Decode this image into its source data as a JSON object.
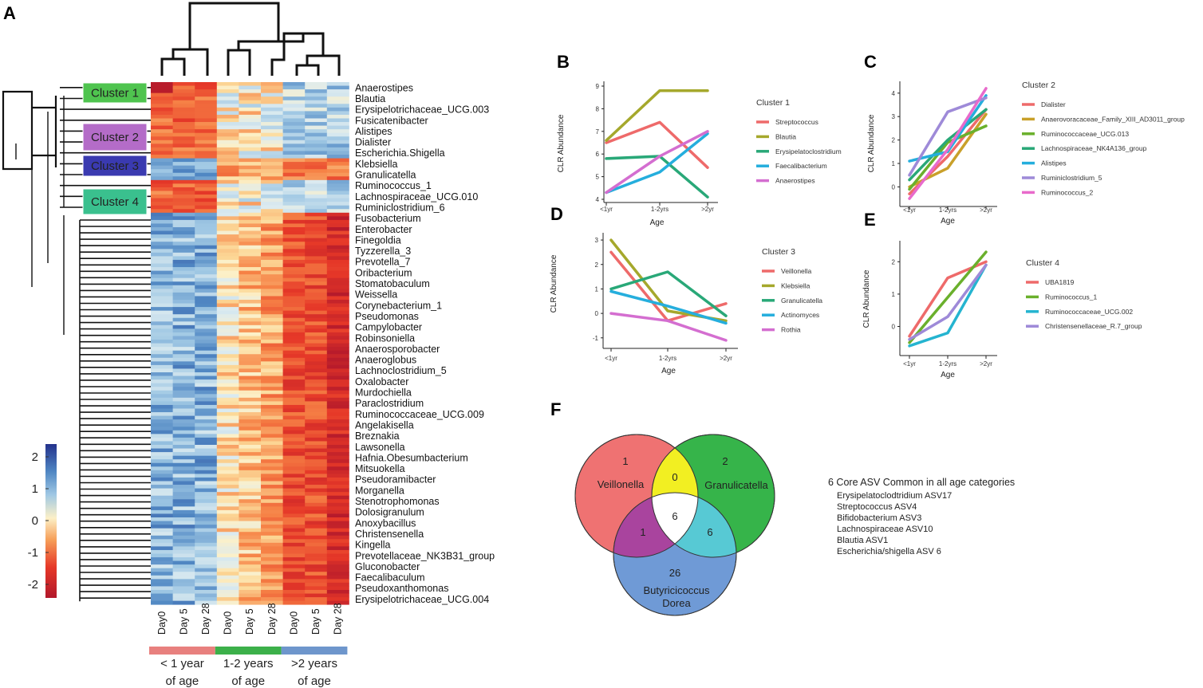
{
  "panel_labels": {
    "a": "A",
    "b": "B",
    "c": "C",
    "d": "D",
    "e": "E",
    "f": "F"
  },
  "heatmap": {
    "columns": [
      "Day0",
      "Day 5",
      "Day 28",
      "Day0",
      "Day 5",
      "Day 28",
      "Day0",
      "Day 5",
      "Day 28"
    ],
    "age_groups": [
      {
        "line1": "< 1 year",
        "line2": "of age",
        "color": "#e8807e"
      },
      {
        "line1": "1-2 years",
        "line2": "of age",
        "color": "#3cb04a"
      },
      {
        "line1": ">2 years",
        "line2": "of age",
        "color": "#6e96cc"
      }
    ],
    "clusters": [
      {
        "label": "Cluster 1",
        "color": "#4fc44f"
      },
      {
        "label": "Cluster 2",
        "color": "#b46cc8"
      },
      {
        "label": "Cluster 3",
        "color": "#3a3ab0"
      },
      {
        "label": "Cluster 4",
        "color": "#3ac08e"
      }
    ],
    "scale_ticks": [
      "2",
      "1",
      "0",
      "-1",
      "-2"
    ],
    "taxa": [
      "Anaerostipes",
      "Blautia",
      "Erysipelotrichaceae_UCG.003",
      "Fusicatenibacter",
      "Alistipes",
      "Dialister",
      "Escherichia.Shigella",
      "Klebsiella",
      "Granulicatella",
      "Ruminococcus_1",
      "Lachnospiraceae_UCG.010",
      "Ruminiclostridium_6",
      "Fusobacterium",
      "Enterobacter",
      "Finegoldia",
      "Tyzzerella_3",
      "Prevotella_7",
      "Oribacterium",
      "Stomatobaculum",
      "Weissella",
      "Corynebacterium_1",
      "Pseudomonas",
      "Campylobacter",
      "Robinsoniella",
      "Anaerosporobacter",
      "Anaeroglobus",
      "Lachnoclostridium_5",
      "Oxalobacter",
      "Murdochiella",
      "Paraclostridium",
      "Ruminococcaceae_UCG.009",
      "Angelakisella",
      "Breznakia",
      "Lawsonella",
      "Hafnia.Obesumbacterium",
      "Mitsuokella",
      "Pseudoramibacter",
      "Morganella",
      "Stenotrophomonas",
      "Dolosigranulum",
      "Anoxybacillus",
      "Christensenella",
      "Kingella",
      "Prevotellaceae_NK3B31_group",
      "Gluconobacter",
      "Faecalibaculum",
      "Pseudoxanthomonas",
      "Erysipelotrichaceae_UCG.004"
    ]
  },
  "chart_data": [
    {
      "panel": "B",
      "type": "line",
      "title": "",
      "xlabel": "Age",
      "ylabel": "CLR Abundance",
      "categories": [
        "<1yr",
        "1-2yrs",
        ">2yr"
      ],
      "ylim": [
        4,
        9
      ],
      "yticks": [
        "4",
        "5",
        "6",
        "7",
        "8",
        "9"
      ],
      "legend_title": "Cluster 1",
      "series": [
        {
          "name": "Streptococcus",
          "color": "#ee6a6a",
          "values": [
            6.5,
            7.4,
            5.4
          ]
        },
        {
          "name": "Blautia",
          "color": "#a5a82c",
          "values": [
            6.6,
            8.8,
            8.8
          ]
        },
        {
          "name": "Erysipelatoclostridium",
          "color": "#29a878",
          "values": [
            5.8,
            5.9,
            4.1
          ]
        },
        {
          "name": "Faecalibacterium",
          "color": "#25aedd",
          "values": [
            4.3,
            5.2,
            6.9
          ]
        },
        {
          "name": "Anaerostipes",
          "color": "#d46ed0",
          "values": [
            4.3,
            5.9,
            7.0
          ]
        }
      ]
    },
    {
      "panel": "C",
      "type": "line",
      "title": "",
      "xlabel": "Age",
      "ylabel": "CLR Abundance",
      "categories": [
        "<1yr",
        "1-2yrs",
        ">2yr"
      ],
      "ylim": [
        -0.7,
        4.3
      ],
      "yticks": [
        "0",
        "1",
        "2",
        "3",
        "4"
      ],
      "legend_title": "Cluster 2",
      "series": [
        {
          "name": "Dialister",
          "color": "#ee6a6a",
          "values": [
            -0.3,
            1.3,
            3.3
          ]
        },
        {
          "name": "Anaerovoracaceae_Family_XIII_AD3011_group",
          "color": "#c9a02a",
          "values": [
            0.0,
            0.8,
            3.1
          ]
        },
        {
          "name": "Ruminococcaceae_UCG.013",
          "color": "#6ab02c",
          "values": [
            -0.1,
            1.9,
            2.6
          ]
        },
        {
          "name": "Lachnospiraceae_NK4A136_group",
          "color": "#29a878",
          "values": [
            0.3,
            2.0,
            3.3
          ]
        },
        {
          "name": "Alistipes",
          "color": "#25aedd",
          "values": [
            1.1,
            1.5,
            3.9
          ]
        },
        {
          "name": "Ruminiclostridium_5",
          "color": "#9e8ad8",
          "values": [
            0.5,
            3.2,
            3.8
          ]
        },
        {
          "name": "Ruminococcus_2",
          "color": "#e86acb",
          "values": [
            -0.5,
            1.6,
            4.2
          ]
        }
      ]
    },
    {
      "panel": "D",
      "type": "line",
      "title": "",
      "xlabel": "Age",
      "ylabel": "CLR Abundance",
      "categories": [
        "<1yr",
        "1-2yrs",
        ">2yr"
      ],
      "ylim": [
        -1.3,
        3.1
      ],
      "yticks": [
        "-1",
        "0",
        "1",
        "2",
        "3"
      ],
      "legend_title": "Cluster 3",
      "series": [
        {
          "name": "Veillonella",
          "color": "#ee6a6a",
          "values": [
            2.5,
            -0.3,
            0.4
          ]
        },
        {
          "name": "Klebsiella",
          "color": "#a5a82c",
          "values": [
            3.0,
            0.1,
            -0.3
          ]
        },
        {
          "name": "Granulicatella",
          "color": "#29a878",
          "values": [
            1.0,
            1.7,
            -0.1
          ]
        },
        {
          "name": "Actinomyces",
          "color": "#25aedd",
          "values": [
            0.9,
            0.3,
            -0.4
          ]
        },
        {
          "name": "Rothia",
          "color": "#d46ed0",
          "values": [
            0.0,
            -0.3,
            -1.1
          ]
        }
      ]
    },
    {
      "panel": "E",
      "type": "line",
      "title": "",
      "xlabel": "Age",
      "ylabel": "CLR Abundance",
      "categories": [
        "<1yr",
        "1-2yrs",
        ">2yr"
      ],
      "ylim": [
        -0.8,
        2.5
      ],
      "yticks": [
        "0",
        "1",
        "2"
      ],
      "legend_title": "Cluster 4",
      "series": [
        {
          "name": "UBA1819",
          "color": "#ee6a6a",
          "values": [
            -0.3,
            1.5,
            2.0
          ]
        },
        {
          "name": "Ruminococcus_1",
          "color": "#6ab02c",
          "values": [
            -0.5,
            0.9,
            2.3
          ]
        },
        {
          "name": "Ruminococcaceae_UCG.002",
          "color": "#25b4d0",
          "values": [
            -0.6,
            -0.2,
            1.9
          ]
        },
        {
          "name": "Christensenellaceae_R.7_group",
          "color": "#9e8ad8",
          "values": [
            -0.4,
            0.3,
            1.9
          ]
        }
      ]
    },
    {
      "panel": "F",
      "type": "venn",
      "sets": [
        {
          "name": "Veillonella",
          "only": 1,
          "color": "#ef7272"
        },
        {
          "name": "Granulicatella",
          "only": 2,
          "color": "#36b44a"
        },
        {
          "name_line1": "Butyricicoccus",
          "name_line2": "Dorea",
          "only": 26,
          "color": "#6f9ad6"
        }
      ],
      "intersections": {
        "red_green": 0,
        "red_blue": 1,
        "green_blue": 6,
        "all": 6
      },
      "intersection_colors": {
        "red_green": "#f2ef22",
        "red_blue": "#a9449e",
        "green_blue": "#57c9d4",
        "all": "#ffffff"
      },
      "core_title": "6 Core ASV Common  in all age categories",
      "core_list": [
        "Erysipelatoclodtridium ASV17",
        "Streptococcus ASV4",
        "Bifidobacterium ASV3",
        "Lachnospiraceae ASV10",
        "Blautia ASV1",
        "Escherichia/shigella ASV 6"
      ]
    }
  ]
}
